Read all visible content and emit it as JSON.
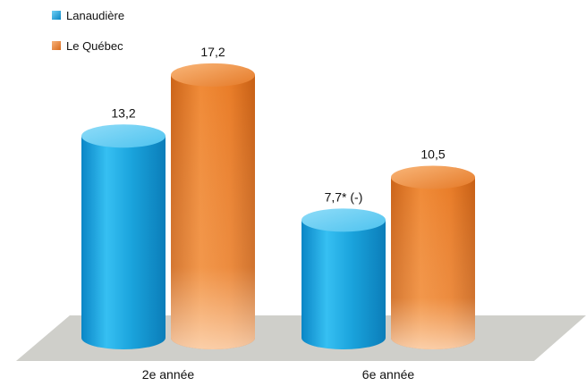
{
  "chart_data": {
    "type": "bar",
    "style": "3d-cylinder",
    "categories": [
      "2e année",
      "6e année"
    ],
    "series": [
      {
        "name": "Lanaudière",
        "values": [
          13.2,
          7.7
        ],
        "value_labels": [
          "13,2",
          "7,7* (-)"
        ],
        "color": "#1aa3dc"
      },
      {
        "name": "Le Québec",
        "values": [
          17.2,
          10.5
        ],
        "value_labels": [
          "17,2",
          "10,5"
        ],
        "color": "#e67d2c"
      }
    ],
    "title": "",
    "xlabel": "",
    "ylabel": "",
    "ylim": [
      0,
      17.2
    ],
    "grid": false,
    "legend_position": "top-left",
    "floor_color": "#cfcfca"
  }
}
